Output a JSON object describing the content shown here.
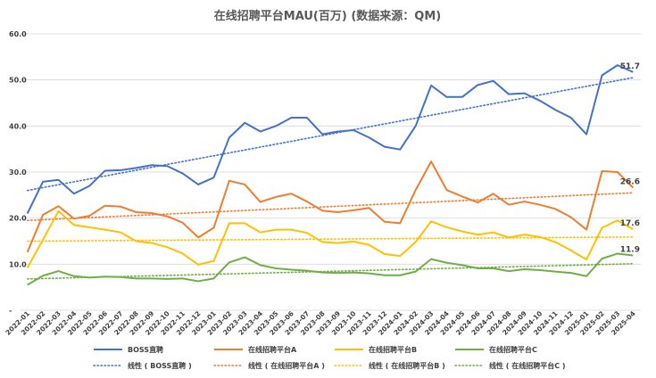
{
  "chart_data": {
    "type": "line",
    "title": "在线招聘平台MAU(百万) (数据来源：QM)",
    "ylim": [
      0,
      60
    ],
    "y_ticks": [
      "-",
      "10.0",
      "20.0",
      "30.0",
      "40.0",
      "50.0",
      "60.0"
    ],
    "grid": true,
    "legend_position": "bottom",
    "categories": [
      "2022-01",
      "2022-02",
      "2022-03",
      "2022-04",
      "2022-05",
      "2022-06",
      "2022-07",
      "2022-08",
      "2022-09",
      "2022-10",
      "2022-11",
      "2022-12",
      "2023-01",
      "2023-02",
      "2023-03",
      "2023-04",
      "2023-05",
      "2023-06",
      "2023-07",
      "2023-08",
      "2023-09",
      "2023-10",
      "2023-11",
      "2023-12",
      "2024-01",
      "2024-02",
      "2024-03",
      "2024-04",
      "2024-05",
      "2024-06",
      "2024-07",
      "2024-08",
      "2024-09",
      "2024-10",
      "2024-11",
      "2024-12",
      "2025-01",
      "2025-02",
      "2025-03",
      "2025-04"
    ],
    "series": [
      {
        "name": "BOSS直聘",
        "color": "#4472C4",
        "end_label": "51.7",
        "values": [
          21.0,
          27.9,
          28.3,
          25.3,
          27.0,
          30.3,
          30.4,
          30.9,
          31.5,
          31.3,
          29.7,
          27.3,
          28.8,
          37.5,
          40.7,
          38.8,
          40.0,
          41.8,
          41.8,
          38.2,
          38.8,
          39.1,
          37.5,
          35.5,
          34.9,
          40.0,
          48.8,
          46.3,
          46.3,
          48.9,
          49.8,
          46.9,
          47.1,
          45.5,
          43.5,
          41.8,
          38.2,
          51.0,
          53.2,
          51.7
        ]
      },
      {
        "name": "在线招聘平台A",
        "color": "#ED7D31",
        "end_label": "26.6",
        "values": [
          12.6,
          20.7,
          22.6,
          19.9,
          20.5,
          22.7,
          22.5,
          21.3,
          21.1,
          20.4,
          19.0,
          15.8,
          17.9,
          28.1,
          27.3,
          23.5,
          24.6,
          25.3,
          23.6,
          21.6,
          21.3,
          21.7,
          22.2,
          19.2,
          18.9,
          26.1,
          32.3,
          26.1,
          24.7,
          23.4,
          25.3,
          22.9,
          23.6,
          22.9,
          22.0,
          20.2,
          17.5,
          30.2,
          30.0,
          26.6
        ]
      },
      {
        "name": "在线招聘平台B",
        "color": "#FFC000",
        "end_label": "17.6",
        "values": [
          9.2,
          15.3,
          21.5,
          18.5,
          18.0,
          17.5,
          16.9,
          15.0,
          14.6,
          13.7,
          12.3,
          9.9,
          10.7,
          18.9,
          18.9,
          16.9,
          17.5,
          17.5,
          16.8,
          14.8,
          14.6,
          14.9,
          14.2,
          12.2,
          11.8,
          14.8,
          19.3,
          18.0,
          17.1,
          16.4,
          16.9,
          15.8,
          16.4,
          15.9,
          14.8,
          13.0,
          11.0,
          17.9,
          19.5,
          17.6
        ]
      },
      {
        "name": "在线招聘平台C",
        "color": "#70AD47",
        "end_label": "11.9",
        "values": [
          5.5,
          7.5,
          8.5,
          7.4,
          7.1,
          7.3,
          7.2,
          6.9,
          6.9,
          6.8,
          6.9,
          6.3,
          6.9,
          10.4,
          11.5,
          9.8,
          9.1,
          8.8,
          8.6,
          8.2,
          8.1,
          8.2,
          8.0,
          7.6,
          7.6,
          8.4,
          11.1,
          10.3,
          9.8,
          9.1,
          9.1,
          8.5,
          8.9,
          8.7,
          8.4,
          8.1,
          7.4,
          11.2,
          12.3,
          11.9
        ]
      }
    ],
    "trendlines": [
      {
        "name": "线性 ( BOSS直聘 )",
        "color": "#4472C4",
        "start": 26.0,
        "end": 50.5
      },
      {
        "name": "线性 ( 在线招聘平台A )",
        "color": "#ED7D31",
        "start": 19.5,
        "end": 25.5
      },
      {
        "name": "线性 ( 在线招聘平台B )",
        "color": "#FFC000",
        "start": 15.0,
        "end": 15.9
      },
      {
        "name": "线性 ( 在线招聘平台C )",
        "color": "#70AD47",
        "start": 6.8,
        "end": 10.1
      }
    ]
  }
}
